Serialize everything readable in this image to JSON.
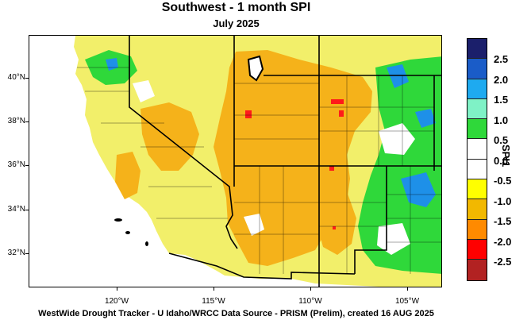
{
  "title": "Southwest - 1 month SPI",
  "subtitle": "July 2025",
  "footer": "WestWide Drought Tracker - U Idaho/WRCC  Data Source - PRISM (Prelim), created 16 AUG 2025",
  "colorbar": {
    "title": "SPI1",
    "labels": [
      "2.5",
      "2.0",
      "1.5",
      "1.0",
      "0.5",
      "0.0",
      "-0.5",
      "-1.0",
      "-1.5",
      "-2.0",
      "-2.5"
    ],
    "colors": [
      "#1b1f6b",
      "#1a5cc8",
      "#1eaaf0",
      "#7ff2c6",
      "#2fd83a",
      "#ffffff",
      "#ffffff",
      "#ffff00",
      "#f2b800",
      "#ff8a00",
      "#ff0000",
      "#b22222"
    ]
  },
  "lat_labels": [
    "40°N",
    "38°N",
    "36°N",
    "34°N",
    "32°N"
  ],
  "lon_labels": [
    "120°W",
    "115°W",
    "110°W",
    "105°W"
  ],
  "palette": {
    "ocean": "#ffffff",
    "near_normal": "#f2ef6a",
    "dry": "#f5b21a",
    "very_dry": "#f0a020",
    "extreme": "#ff1a1a",
    "wet": "#2fd83a",
    "very_wet": "#1e90e8",
    "border": "#000000"
  }
}
